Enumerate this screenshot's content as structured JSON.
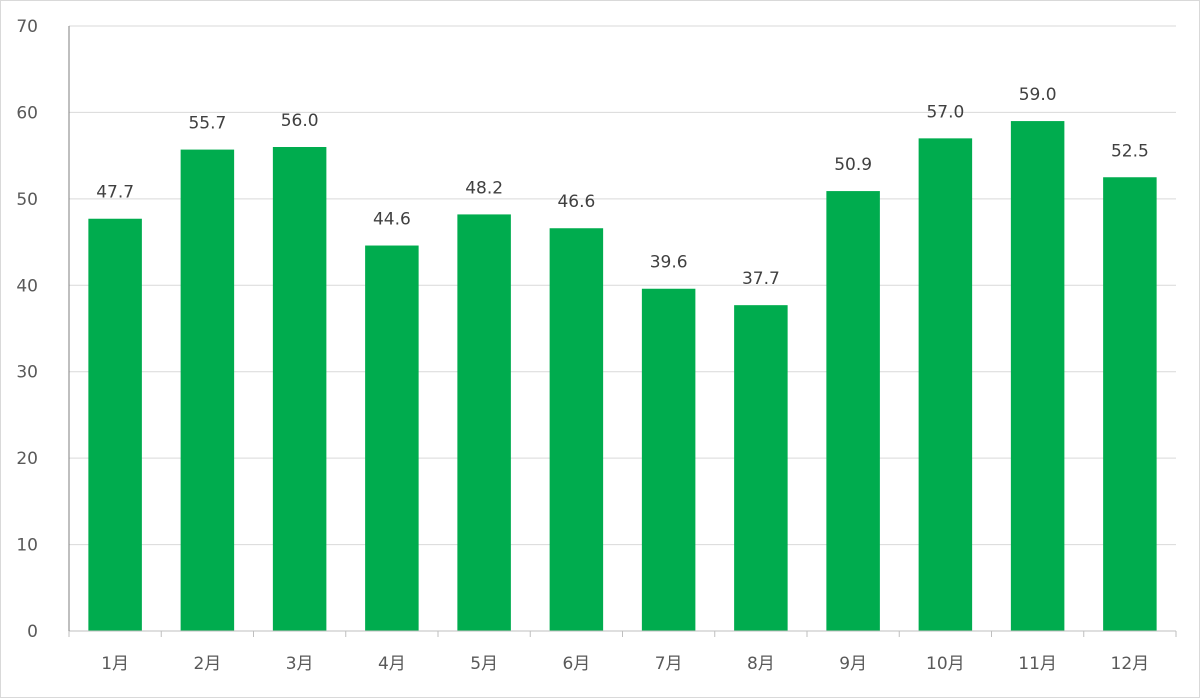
{
  "chart_data": {
    "type": "bar",
    "categories": [
      "1月",
      "2月",
      "3月",
      "4月",
      "5月",
      "6月",
      "7月",
      "8月",
      "9月",
      "10月",
      "11月",
      "12月"
    ],
    "values": [
      47.7,
      55.7,
      56.0,
      44.6,
      48.2,
      46.6,
      39.6,
      37.7,
      50.9,
      57.0,
      59.0,
      52.5
    ],
    "data_labels": [
      "47.7",
      "55.7",
      "56.0",
      "44.6",
      "48.2",
      "46.6",
      "39.6",
      "37.7",
      "50.9",
      "57.0",
      "59.0",
      "52.5"
    ],
    "yticks": [
      "0",
      "10",
      "20",
      "30",
      "40",
      "50",
      "60",
      "70"
    ],
    "title": "",
    "xlabel": "",
    "ylabel": "",
    "ylim": [
      0,
      70
    ],
    "grid": true,
    "bar_color": "#00ac4e",
    "grid_color": "#d9d9d9",
    "axis_color": "#bfbfbf"
  }
}
